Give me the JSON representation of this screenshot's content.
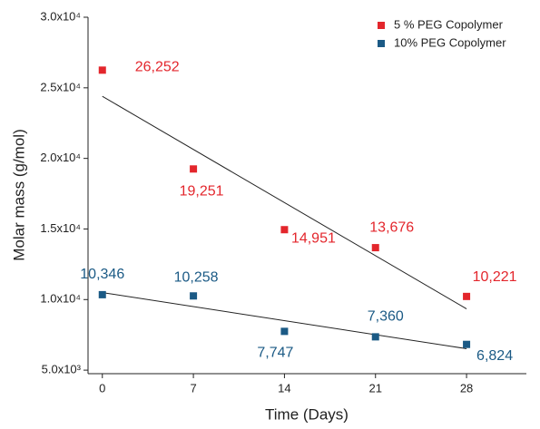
{
  "chart_data": {
    "type": "scatter",
    "x_label": "Time (Days)",
    "y_label": "Molar mass (g/mol)",
    "x": [
      0,
      7,
      14,
      21,
      28
    ],
    "series": [
      {
        "name": "5 % PEG Copolymer",
        "color": "#e3262c",
        "values": [
          26252,
          19251,
          14951,
          13676,
          10221
        ],
        "value_labels": [
          "26,252",
          "19,251",
          "14,951",
          "13,676",
          "10,221"
        ]
      },
      {
        "name": "10% PEG Copolymer",
        "color": "#1b5a85",
        "values": [
          10346,
          10258,
          7747,
          7360,
          6824
        ],
        "value_labels": [
          "10,346",
          "10,258",
          "7,747",
          "7,360",
          "6,824"
        ]
      }
    ],
    "trendline": "linear",
    "xlim": [
      -1.1,
      32.6
    ],
    "xticks": [
      0,
      7,
      14,
      21,
      28
    ],
    "ylim": [
      4750,
      30000
    ],
    "yticks": [
      {
        "value": 5000,
        "label": "5.0x10³"
      },
      {
        "value": 10000,
        "label": "1.0x10⁴"
      },
      {
        "value": 15000,
        "label": "1.5x10⁴"
      },
      {
        "value": 20000,
        "label": "2.0x10⁴"
      },
      {
        "value": 25000,
        "label": "2.5x10⁴"
      },
      {
        "value": 30000,
        "label": "3.0x10⁴"
      }
    ],
    "legend": "top-right"
  }
}
